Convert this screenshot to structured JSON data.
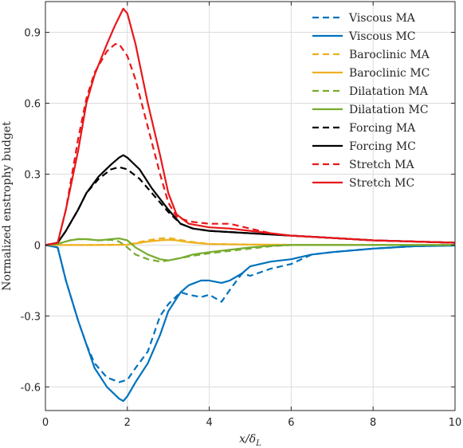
{
  "chart_data": {
    "type": "line",
    "title": "",
    "xlabel_main": "x/δ",
    "xlabel_sub": "L",
    "ylabel": "Normalized enstrophy budget",
    "xlim": [
      0,
      10
    ],
    "ylim": [
      -0.7,
      1.03
    ],
    "x_ticks": [
      0,
      2,
      4,
      6,
      8,
      10
    ],
    "y_ticks": [
      -0.6,
      -0.3,
      0,
      0.3,
      0.6,
      0.9
    ],
    "x_tick_labels": [
      "0",
      "2",
      "4",
      "6",
      "8",
      "10"
    ],
    "y_tick_labels": [
      "-0.6",
      "-0.3",
      "0",
      "0.3",
      "0.6",
      "0.9"
    ],
    "grid": true,
    "legend_position": "top-right",
    "series": [
      {
        "name": "Viscous MA",
        "color": "#0072BD",
        "dash": true,
        "x": [
          0,
          0.3,
          0.5,
          0.8,
          1.0,
          1.2,
          1.5,
          1.8,
          2.0,
          2.2,
          2.5,
          2.8,
          3.0,
          3.3,
          3.5,
          3.8,
          4.0,
          4.3,
          4.5,
          4.8,
          5.0,
          5.5,
          6.0,
          6.5,
          7.0,
          8.0,
          9.0,
          10.0
        ],
        "y": [
          0,
          -0.01,
          -0.15,
          -0.32,
          -0.42,
          -0.5,
          -0.56,
          -0.58,
          -0.57,
          -0.52,
          -0.45,
          -0.3,
          -0.25,
          -0.2,
          -0.21,
          -0.22,
          -0.21,
          -0.24,
          -0.19,
          -0.12,
          -0.13,
          -0.1,
          -0.08,
          -0.04,
          -0.03,
          -0.015,
          -0.005,
          -0.002
        ]
      },
      {
        "name": "Viscous MC",
        "color": "#0072BD",
        "dash": false,
        "x": [
          0,
          0.3,
          0.5,
          0.8,
          1.0,
          1.2,
          1.5,
          1.8,
          1.9,
          2.0,
          2.2,
          2.5,
          2.8,
          3.0,
          3.3,
          3.5,
          3.8,
          4.0,
          4.3,
          4.5,
          4.8,
          5.0,
          5.5,
          6.0,
          6.5,
          7.0,
          8.0,
          9.0,
          10.0
        ],
        "y": [
          0,
          -0.01,
          -0.15,
          -0.32,
          -0.42,
          -0.52,
          -0.6,
          -0.65,
          -0.66,
          -0.64,
          -0.58,
          -0.5,
          -0.38,
          -0.28,
          -0.2,
          -0.17,
          -0.15,
          -0.15,
          -0.16,
          -0.15,
          -0.12,
          -0.09,
          -0.07,
          -0.06,
          -0.04,
          -0.03,
          -0.015,
          -0.005,
          -0.002
        ]
      },
      {
        "name": "Baroclinic MA",
        "color": "#EDB120",
        "dash": true,
        "x": [
          0,
          1,
          2,
          2.5,
          2.8,
          3.0,
          3.2,
          3.5,
          4,
          5,
          6,
          8,
          10
        ],
        "y": [
          0,
          0,
          0.002,
          0.02,
          0.028,
          0.03,
          0.025,
          0.015,
          0.005,
          0.002,
          0.001,
          0,
          0
        ]
      },
      {
        "name": "Baroclinic MC",
        "color": "#EDB120",
        "dash": false,
        "x": [
          0,
          1,
          2,
          2.5,
          2.8,
          3.0,
          3.2,
          3.5,
          4,
          5,
          6,
          8,
          10
        ],
        "y": [
          0,
          0,
          0.001,
          0.015,
          0.02,
          0.022,
          0.02,
          0.012,
          0.004,
          0.002,
          0.001,
          0,
          0
        ]
      },
      {
        "name": "Dilatation MA",
        "color": "#77AC30",
        "dash": true,
        "x": [
          0,
          0.3,
          0.6,
          0.8,
          1.0,
          1.3,
          1.6,
          1.8,
          2.0,
          2.2,
          2.5,
          2.8,
          3.0,
          3.3,
          3.6,
          4.0,
          4.5,
          5.0,
          5.5,
          6.0,
          7.0,
          8.0,
          10.0
        ],
        "y": [
          0,
          0.005,
          0.02,
          0.025,
          0.025,
          0.02,
          0.022,
          0.015,
          -0.01,
          -0.04,
          -0.06,
          -0.07,
          -0.065,
          -0.055,
          -0.045,
          -0.035,
          -0.025,
          -0.015,
          -0.005,
          0,
          0,
          0,
          0
        ]
      },
      {
        "name": "Dilatation MC",
        "color": "#77AC30",
        "dash": false,
        "x": [
          0,
          0.3,
          0.6,
          0.8,
          1.0,
          1.3,
          1.6,
          1.8,
          2.0,
          2.2,
          2.5,
          2.8,
          3.0,
          3.3,
          3.6,
          4.0,
          4.5,
          5.0,
          5.5,
          6.0,
          7.0,
          8.0,
          10.0
        ],
        "y": [
          0,
          0.005,
          0.02,
          0.025,
          0.025,
          0.02,
          0.025,
          0.028,
          0.02,
          -0.01,
          -0.04,
          -0.06,
          -0.065,
          -0.055,
          -0.04,
          -0.03,
          -0.02,
          -0.01,
          -0.003,
          0,
          0,
          0,
          0
        ]
      },
      {
        "name": "Forcing MA",
        "color": "#000000",
        "dash": true,
        "x": [
          0,
          0.3,
          0.5,
          0.8,
          1.0,
          1.3,
          1.6,
          1.8,
          2.0,
          2.3,
          2.6,
          3.0,
          3.3,
          3.6,
          4.0,
          4.5,
          5.0,
          5.5,
          6.0,
          6.5,
          7.0,
          8.0,
          9.0,
          10.0
        ],
        "y": [
          0,
          0.01,
          0.06,
          0.15,
          0.22,
          0.28,
          0.32,
          0.33,
          0.32,
          0.28,
          0.22,
          0.14,
          0.09,
          0.07,
          0.06,
          0.055,
          0.05,
          0.045,
          0.04,
          0.035,
          0.03,
          0.02,
          0.015,
          0.01
        ]
      },
      {
        "name": "Forcing MC",
        "color": "#000000",
        "dash": false,
        "x": [
          0,
          0.3,
          0.5,
          0.8,
          1.0,
          1.3,
          1.6,
          1.8,
          1.9,
          2.0,
          2.3,
          2.6,
          3.0,
          3.3,
          3.6,
          4.0,
          4.5,
          5.0,
          5.5,
          6.0,
          6.5,
          7.0,
          8.0,
          9.0,
          10.0
        ],
        "y": [
          0,
          0.01,
          0.06,
          0.15,
          0.22,
          0.29,
          0.34,
          0.37,
          0.38,
          0.37,
          0.32,
          0.24,
          0.15,
          0.09,
          0.07,
          0.06,
          0.055,
          0.05,
          0.045,
          0.04,
          0.035,
          0.03,
          0.02,
          0.015,
          0.01
        ]
      },
      {
        "name": "Stretch MA",
        "color": "#E8171A",
        "dash": true,
        "x": [
          0,
          0.3,
          0.5,
          0.8,
          1.0,
          1.2,
          1.5,
          1.7,
          1.8,
          2.0,
          2.2,
          2.5,
          2.8,
          3.0,
          3.2,
          3.5,
          4.0,
          4.5,
          5.0,
          5.5,
          6.0,
          7.0,
          8.0,
          9.0,
          10.0
        ],
        "y": [
          0,
          0.01,
          0.15,
          0.45,
          0.62,
          0.73,
          0.82,
          0.85,
          0.85,
          0.8,
          0.7,
          0.5,
          0.3,
          0.18,
          0.12,
          0.1,
          0.09,
          0.09,
          0.07,
          0.05,
          0.04,
          0.03,
          0.02,
          0.015,
          0.01
        ]
      },
      {
        "name": "Stretch MC",
        "color": "#E8171A",
        "dash": false,
        "x": [
          0,
          0.3,
          0.5,
          0.8,
          1.0,
          1.2,
          1.5,
          1.7,
          1.9,
          2.0,
          2.2,
          2.5,
          2.8,
          3.0,
          3.2,
          3.5,
          4.0,
          4.5,
          5.0,
          5.5,
          6.0,
          7.0,
          8.0,
          9.0,
          10.0
        ],
        "y": [
          0,
          0.01,
          0.15,
          0.4,
          0.6,
          0.72,
          0.85,
          0.93,
          1.0,
          0.98,
          0.85,
          0.6,
          0.38,
          0.22,
          0.13,
          0.09,
          0.075,
          0.07,
          0.06,
          0.05,
          0.04,
          0.03,
          0.02,
          0.015,
          0.01
        ]
      }
    ]
  }
}
